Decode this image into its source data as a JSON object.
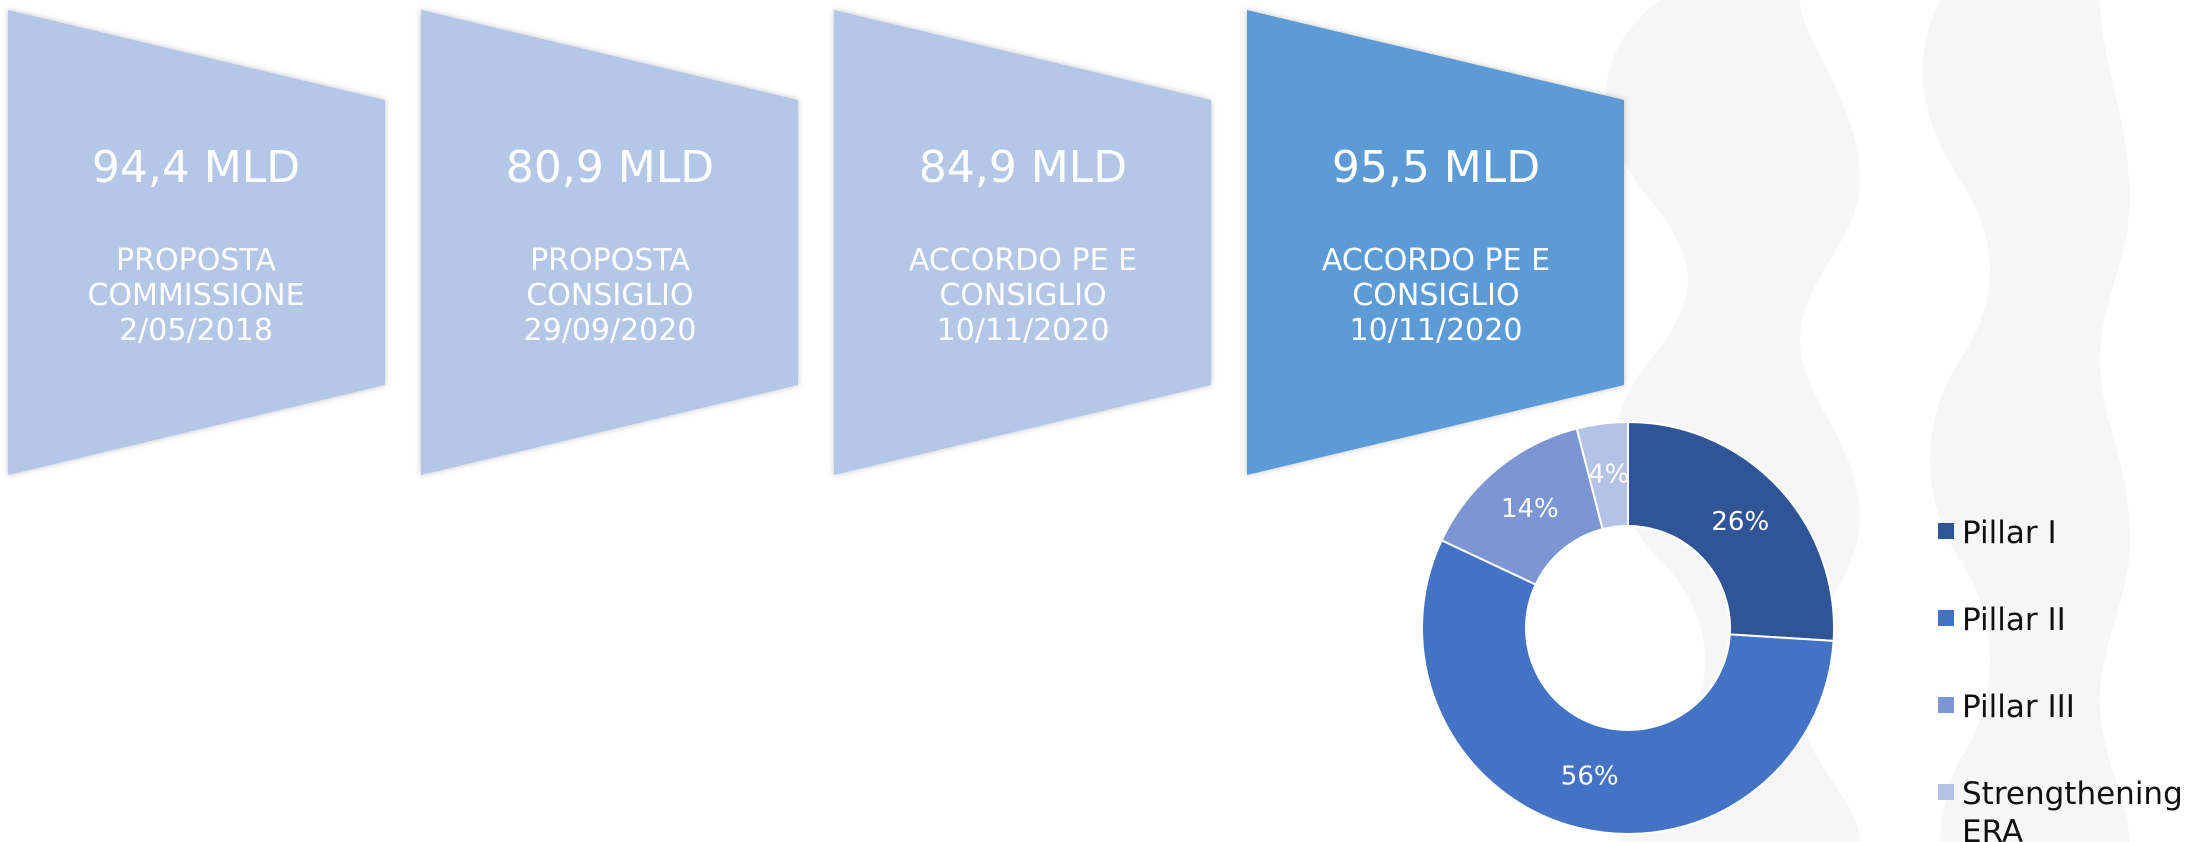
{
  "stages": [
    {
      "amount": "94,4 MLD",
      "lines": [
        "PROPOSTA",
        "COMMISSIONE",
        "2/05/2018"
      ],
      "highlight": false
    },
    {
      "amount": "80,9 MLD",
      "lines": [
        "PROPOSTA",
        "CONSIGLIO",
        "29/09/2020"
      ],
      "highlight": false
    },
    {
      "amount": "84,9 MLD",
      "lines": [
        "ACCORDO PE E",
        "CONSIGLIO",
        "10/11/2020"
      ],
      "highlight": false
    },
    {
      "amount": "95,5 MLD",
      "lines": [
        "ACCORDO PE E",
        "CONSIGLIO",
        "10/11/2020"
      ],
      "highlight": true
    }
  ],
  "colors": {
    "stage": "#b4c7e7",
    "stage_highlight": "#5b9bd5",
    "slices": [
      "#2f5597",
      "#4472c4",
      "#7b96d2",
      "#b4c2e6"
    ]
  },
  "chart_data": {
    "type": "pie",
    "donut": true,
    "labels": [
      "Pillar I",
      "Pillar II",
      "Pillar III",
      "Strengthening ERA"
    ],
    "values": [
      26,
      56,
      14,
      4
    ],
    "value_labels": [
      "26%",
      "56%",
      "14%",
      "4%"
    ],
    "legend_lines": [
      [
        "Pillar I"
      ],
      [
        "Pillar II"
      ],
      [
        "Pillar III"
      ],
      [
        "Strengthening",
        "ERA"
      ]
    ],
    "legend_position": "right",
    "title": ""
  }
}
